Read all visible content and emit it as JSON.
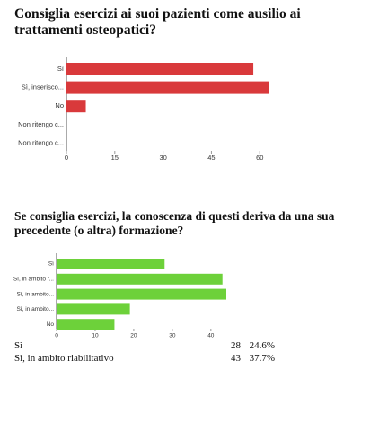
{
  "chart_data": [
    {
      "type": "barh",
      "title": "Consiglia esercizi ai suoi pazienti come ausilio ai trattamenti osteopatici?",
      "categories": [
        "Sì",
        "Sì, inserisco...",
        "No",
        "Non ritengo c...",
        "Non ritengo c..."
      ],
      "values": [
        58,
        63,
        6,
        0,
        0
      ],
      "color": "#d9393b",
      "xlim": [
        0,
        63
      ],
      "xticks": [
        0,
        15,
        30,
        45,
        60
      ]
    },
    {
      "type": "barh",
      "title": "Se consiglia esercizi, la conoscenza di questi deriva da una sua precedente (o altra) formazione?",
      "categories": [
        "Sì",
        "Sì, in ambito r...",
        "Sì, in ambito...",
        "Sì, in ambito...",
        "No"
      ],
      "values": [
        28,
        43,
        44,
        19,
        15
      ],
      "color": "#6dd13a",
      "xlim": [
        0,
        44
      ],
      "xticks": [
        0,
        10,
        20,
        30,
        40
      ]
    }
  ],
  "table": {
    "rows": [
      [
        "Sì",
        "28",
        "24.6%"
      ],
      [
        "Sì, in ambito riabilitativo",
        "43",
        "37.7%"
      ]
    ]
  }
}
